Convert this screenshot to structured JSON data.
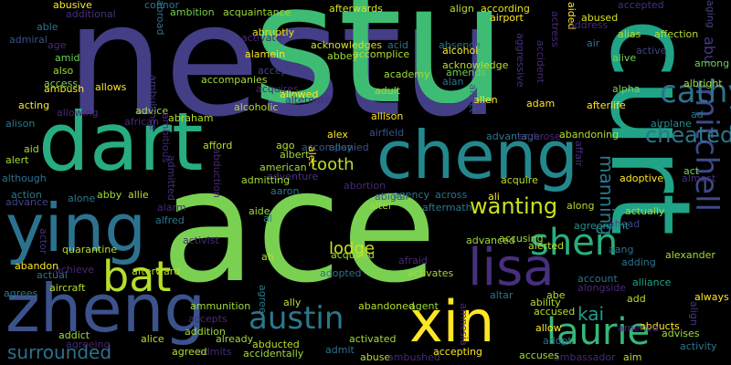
{
  "words": [
    {
      "text": "nestu",
      "color": "#433e85"
    },
    {
      "text": "stu",
      "color": "#3fbc73"
    },
    {
      "text": "ace",
      "color": "#7ad151"
    },
    {
      "text": "dart",
      "color": "#27ad81"
    },
    {
      "text": "curt",
      "color": "#20a386"
    },
    {
      "text": "cheng",
      "color": "#23888e"
    },
    {
      "text": "ying",
      "color": "#2c728e"
    },
    {
      "text": "zheng",
      "color": "#3b528b"
    },
    {
      "text": "xin",
      "color": "#fde725"
    },
    {
      "text": "lisa",
      "color": "#472f7d"
    },
    {
      "text": "laurie",
      "color": "#35b779"
    },
    {
      "text": "shen",
      "color": "#29af7f"
    },
    {
      "text": "mitchell",
      "color": "#3e4a89"
    },
    {
      "text": "bat",
      "color": "#b5de2b"
    },
    {
      "text": "austin",
      "color": "#2a788e"
    },
    {
      "text": "cathy",
      "color": "#2c728e"
    },
    {
      "text": "cheated",
      "color": "#2a788e"
    },
    {
      "text": "wanting",
      "color": "#cae11f"
    },
    {
      "text": "tooth",
      "color": "#bddf26"
    },
    {
      "text": "lodge",
      "color": "#cae11f"
    },
    {
      "text": "kai",
      "color": "#1f9e89"
    },
    {
      "text": "manning",
      "color": "#2a788e"
    },
    {
      "text": "surrounded",
      "color": "#2d708e"
    },
    {
      "text": "abu",
      "color": "#443983"
    },
    {
      "text": "quarantine",
      "color": "#b5de2b"
    },
    {
      "text": "afterwards",
      "color": "#d8e219"
    },
    {
      "text": "abruptly",
      "color": "#e5e419"
    },
    {
      "text": "acknowledges",
      "color": "#d8e219"
    },
    {
      "text": "ambition",
      "color": "#7ad151"
    },
    {
      "text": "acquaintance",
      "color": "#a0da39"
    },
    {
      "text": "align",
      "color": "#b5de2b"
    },
    {
      "text": "according",
      "color": "#e5e419"
    },
    {
      "text": "acid",
      "color": "#2c728e"
    },
    {
      "text": "absence",
      "color": "#2c728e"
    },
    {
      "text": "airport",
      "color": "#fde725"
    },
    {
      "text": "aided",
      "color": "#fde725"
    },
    {
      "text": "abused",
      "color": "#d8e219"
    },
    {
      "text": "address",
      "color": "#482878"
    },
    {
      "text": "accepted",
      "color": "#472f7d"
    },
    {
      "text": "alias",
      "color": "#b5de2b"
    },
    {
      "text": "affection",
      "color": "#b5de2b"
    },
    {
      "text": "air",
      "color": "#2c728e"
    },
    {
      "text": "alive",
      "color": "#7ad151"
    },
    {
      "text": "active",
      "color": "#414487"
    },
    {
      "text": "among",
      "color": "#6ece58"
    },
    {
      "text": "albright",
      "color": "#a0da39"
    },
    {
      "text": "alpha",
      "color": "#7ad151"
    },
    {
      "text": "afterlife",
      "color": "#fde725"
    },
    {
      "text": "airplane",
      "color": "#21918c"
    },
    {
      "text": "ad",
      "color": "#2c728e"
    },
    {
      "text": "aging",
      "color": "#414487"
    },
    {
      "text": "act",
      "color": "#7ad151"
    },
    {
      "text": "adoptive",
      "color": "#fde725"
    },
    {
      "text": "almost",
      "color": "#472f7d"
    },
    {
      "text": "actually",
      "color": "#a0da39"
    },
    {
      "text": "ahead",
      "color": "#414487"
    },
    {
      "text": "alexander",
      "color": "#a0da39"
    },
    {
      "text": "alliance",
      "color": "#1fa187"
    },
    {
      "text": "always",
      "color": "#fde725"
    },
    {
      "text": "abducts",
      "color": "#fde725"
    },
    {
      "text": "advises",
      "color": "#a0da39"
    },
    {
      "text": "activity",
      "color": "#2a788e"
    },
    {
      "text": "ambassador",
      "color": "#482878"
    },
    {
      "text": "aim",
      "color": "#b5de2b"
    },
    {
      "text": "abusive",
      "color": "#fde725"
    },
    {
      "text": "additional",
      "color": "#472f7d"
    },
    {
      "text": "connor",
      "color": "#2a788e"
    },
    {
      "text": "able",
      "color": "#2c728e"
    },
    {
      "text": "admiral",
      "color": "#3b528b"
    },
    {
      "text": "age",
      "color": "#482878"
    },
    {
      "text": "amid",
      "color": "#6ece58"
    },
    {
      "text": "also",
      "color": "#a0da39"
    },
    {
      "text": "access",
      "color": "#7ad151"
    },
    {
      "text": "ambush",
      "color": "#fde725"
    },
    {
      "text": "allows",
      "color": "#fde725"
    },
    {
      "text": "acting",
      "color": "#fde725"
    },
    {
      "text": "allowing",
      "color": "#482878"
    },
    {
      "text": "alison",
      "color": "#2a788e"
    },
    {
      "text": "aid",
      "color": "#a0da39"
    },
    {
      "text": "alert",
      "color": "#a0da39"
    },
    {
      "text": "although",
      "color": "#2c728e"
    },
    {
      "text": "action",
      "color": "#2a788e"
    },
    {
      "text": "advance",
      "color": "#414487"
    },
    {
      "text": "alone",
      "color": "#2a788e"
    },
    {
      "text": "abby",
      "color": "#a0da39"
    },
    {
      "text": "allie",
      "color": "#b5de2b"
    },
    {
      "text": "alfred",
      "color": "#2a788e"
    },
    {
      "text": "alarm",
      "color": "#482878"
    },
    {
      "text": "admitted",
      "color": "#472f7d"
    },
    {
      "text": "activate",
      "color": "#482878"
    },
    {
      "text": "alamein",
      "color": "#fde725"
    },
    {
      "text": "accept",
      "color": "#414487"
    },
    {
      "text": "accompanies",
      "color": "#a0da39"
    },
    {
      "text": "acquires",
      "color": "#482878"
    },
    {
      "text": "allowed",
      "color": "#fde725"
    },
    {
      "text": "alternate",
      "color": "#472f7d"
    },
    {
      "text": "advice",
      "color": "#a0da39"
    },
    {
      "text": "abraham",
      "color": "#b5de2b"
    },
    {
      "text": "alcoholic",
      "color": "#b5de2b"
    },
    {
      "text": "african",
      "color": "#482878"
    },
    {
      "text": "ambulance",
      "color": "#443983"
    },
    {
      "text": "ambitious",
      "color": "#482878"
    },
    {
      "text": "abroad",
      "color": "#2c728e"
    },
    {
      "text": "abbey",
      "color": "#a0da39"
    },
    {
      "text": "accomplice",
      "color": "#b5de2b"
    },
    {
      "text": "academy",
      "color": "#a0da39"
    },
    {
      "text": "adult",
      "color": "#a0da39"
    },
    {
      "text": "alcohol",
      "color": "#fde725"
    },
    {
      "text": "acknowledge",
      "color": "#b5de2b"
    },
    {
      "text": "amends",
      "color": "#6ece58"
    },
    {
      "text": "alan",
      "color": "#2c728e"
    },
    {
      "text": "allen",
      "color": "#fde725"
    },
    {
      "text": "adam",
      "color": "#fde725"
    },
    {
      "text": "affect",
      "color": "#3b528b"
    },
    {
      "text": "allison",
      "color": "#fde725"
    },
    {
      "text": "aggressive",
      "color": "#472f7d"
    },
    {
      "text": "accident",
      "color": "#482878"
    },
    {
      "text": "actress",
      "color": "#482878"
    },
    {
      "text": "advantage",
      "color": "#2a788e"
    },
    {
      "text": "ambrose",
      "color": "#482878"
    },
    {
      "text": "abandoning",
      "color": "#b5de2b"
    },
    {
      "text": "affair",
      "color": "#482878"
    },
    {
      "text": "alex",
      "color": "#fde725"
    },
    {
      "text": "alley",
      "color": "#2c728e"
    },
    {
      "text": "airfield",
      "color": "#3b528b"
    },
    {
      "text": "afford",
      "color": "#b5de2b"
    },
    {
      "text": "ago",
      "color": "#b5de2b"
    },
    {
      "text": "accompanied",
      "color": "#3b528b"
    },
    {
      "text": "albert",
      "color": "#a0da39"
    },
    {
      "text": "alec",
      "color": "#fde725"
    },
    {
      "text": "american",
      "color": "#a0da39"
    },
    {
      "text": "abduction",
      "color": "#482878"
    },
    {
      "text": "adventure",
      "color": "#472f7d"
    },
    {
      "text": "abortion",
      "color": "#482878"
    },
    {
      "text": "admitting",
      "color": "#a0da39"
    },
    {
      "text": "aaron",
      "color": "#2a788e"
    },
    {
      "text": "aide",
      "color": "#a0da39"
    },
    {
      "text": "al",
      "color": "#2a788e"
    },
    {
      "text": "abigail",
      "color": "#3b528b"
    },
    {
      "text": "alter",
      "color": "#a0da39"
    },
    {
      "text": "agency",
      "color": "#2c728e"
    },
    {
      "text": "aftermath",
      "color": "#2a788e"
    },
    {
      "text": "across",
      "color": "#2c728e"
    },
    {
      "text": "acquire",
      "color": "#b5de2b"
    },
    {
      "text": "ali",
      "color": "#fde725"
    },
    {
      "text": "advanced",
      "color": "#a0da39"
    },
    {
      "text": "accusing",
      "color": "#a0da39"
    },
    {
      "text": "alerted",
      "color": "#b5de2b"
    },
    {
      "text": "along",
      "color": "#b5de2b"
    },
    {
      "text": "agreement",
      "color": "#21918c"
    },
    {
      "text": "aang",
      "color": "#2c728e"
    },
    {
      "text": "adding",
      "color": "#2c728e"
    },
    {
      "text": "account",
      "color": "#2c728e"
    },
    {
      "text": "alongside",
      "color": "#482878"
    },
    {
      "text": "add",
      "color": "#b5de2b"
    },
    {
      "text": "america",
      "color": "#482878"
    },
    {
      "text": "align",
      "color": "#443983"
    },
    {
      "text": "activist",
      "color": "#482878"
    },
    {
      "text": "acquired",
      "color": "#a0da39"
    },
    {
      "text": "ah",
      "color": "#b5de2b"
    },
    {
      "text": "adopted",
      "color": "#2c728e"
    },
    {
      "text": "afraid",
      "color": "#482878"
    },
    {
      "text": "activates",
      "color": "#a0da39"
    },
    {
      "text": "ability",
      "color": "#b5de2b"
    },
    {
      "text": "abe",
      "color": "#b5de2b"
    },
    {
      "text": "altar",
      "color": "#2c728e"
    },
    {
      "text": "accused",
      "color": "#b5de2b"
    },
    {
      "text": "allow",
      "color": "#fde725"
    },
    {
      "text": "adopt",
      "color": "#2c728e"
    },
    {
      "text": "accuses",
      "color": "#a0da39"
    },
    {
      "text": "achieve",
      "color": "#482878"
    },
    {
      "text": "abandon",
      "color": "#fde725"
    },
    {
      "text": "actual",
      "color": "#2c728e"
    },
    {
      "text": "actor",
      "color": "#472f7d"
    },
    {
      "text": "agrees",
      "color": "#2a788e"
    },
    {
      "text": "aircraft",
      "color": "#b5de2b"
    },
    {
      "text": "afterward",
      "color": "#b5de2b"
    },
    {
      "text": "ally",
      "color": "#b5de2b"
    },
    {
      "text": "abandoned",
      "color": "#b5de2b"
    },
    {
      "text": "agent",
      "color": "#a0da39"
    },
    {
      "text": "amnesia",
      "color": "#482878"
    },
    {
      "text": "ammunition",
      "color": "#a0da39"
    },
    {
      "text": "accepts",
      "color": "#482878"
    },
    {
      "text": "addition",
      "color": "#a0da39"
    },
    {
      "text": "agree",
      "color": "#2a788e"
    },
    {
      "text": "addict",
      "color": "#a0da39"
    },
    {
      "text": "agreeing",
      "color": "#482878"
    },
    {
      "text": "alice",
      "color": "#b5de2b"
    },
    {
      "text": "already",
      "color": "#a0da39"
    },
    {
      "text": "abducted",
      "color": "#b5de2b"
    },
    {
      "text": "admit",
      "color": "#2c728e"
    },
    {
      "text": "activated",
      "color": "#a0da39"
    },
    {
      "text": "accepting",
      "color": "#fde725"
    },
    {
      "text": "admits",
      "color": "#482878"
    },
    {
      "text": "agreed",
      "color": "#b5de2b"
    },
    {
      "text": "accidentally",
      "color": "#a0da39"
    },
    {
      "text": "abuse",
      "color": "#b5de2b"
    },
    {
      "text": "ambushed",
      "color": "#482878"
    }
  ]
}
